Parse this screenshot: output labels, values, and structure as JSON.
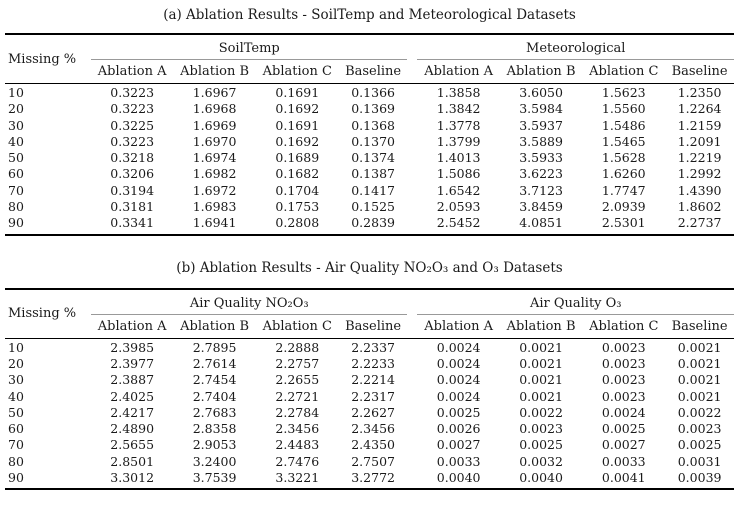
{
  "page": {
    "background": "#ffffff",
    "text_color": "#1a1a1a",
    "heavy_rule_color": "#000000",
    "cmidrule_color": "#999999"
  },
  "tables": [
    {
      "caption": "(a) Ablation Results - SoilTemp and Meteorological Datasets",
      "row_header": "Missing %",
      "groups": [
        {
          "label": "SoilTemp",
          "columns": [
            "Ablation A",
            "Ablation B",
            "Ablation C",
            "Baseline"
          ]
        },
        {
          "label": "Meteorological",
          "columns": [
            "Ablation A",
            "Ablation B",
            "Ablation C",
            "Baseline"
          ]
        }
      ],
      "rows": [
        {
          "missing": "10",
          "values": [
            "0.3223",
            "1.6967",
            "0.1691",
            "0.1366",
            "1.3858",
            "3.6050",
            "1.5623",
            "1.2350"
          ]
        },
        {
          "missing": "20",
          "values": [
            "0.3223",
            "1.6968",
            "0.1692",
            "0.1369",
            "1.3842",
            "3.5984",
            "1.5560",
            "1.2264"
          ]
        },
        {
          "missing": "30",
          "values": [
            "0.3225",
            "1.6969",
            "0.1691",
            "0.1368",
            "1.3778",
            "3.5937",
            "1.5486",
            "1.2159"
          ]
        },
        {
          "missing": "40",
          "values": [
            "0.3223",
            "1.6970",
            "0.1692",
            "0.1370",
            "1.3799",
            "3.5889",
            "1.5465",
            "1.2091"
          ]
        },
        {
          "missing": "50",
          "values": [
            "0.3218",
            "1.6974",
            "0.1689",
            "0.1374",
            "1.4013",
            "3.5933",
            "1.5628",
            "1.2219"
          ]
        },
        {
          "missing": "60",
          "values": [
            "0.3206",
            "1.6982",
            "0.1682",
            "0.1387",
            "1.5086",
            "3.6223",
            "1.6260",
            "1.2992"
          ]
        },
        {
          "missing": "70",
          "values": [
            "0.3194",
            "1.6972",
            "0.1704",
            "0.1417",
            "1.6542",
            "3.7123",
            "1.7747",
            "1.4390"
          ]
        },
        {
          "missing": "80",
          "values": [
            "0.3181",
            "1.6983",
            "0.1753",
            "0.1525",
            "2.0593",
            "3.8459",
            "2.0939",
            "1.8602"
          ]
        },
        {
          "missing": "90",
          "values": [
            "0.3341",
            "1.6941",
            "0.2808",
            "0.2839",
            "2.5452",
            "4.0851",
            "2.5301",
            "2.2737"
          ]
        }
      ]
    },
    {
      "caption": "(b) Ablation Results - Air Quality NO₂O₃ and O₃ Datasets",
      "row_header": "Missing %",
      "groups": [
        {
          "label": "Air Quality NO₂O₃",
          "columns": [
            "Ablation A",
            "Ablation B",
            "Ablation C",
            "Baseline"
          ]
        },
        {
          "label": "Air Quality O₃",
          "columns": [
            "Ablation A",
            "Ablation B",
            "Ablation C",
            "Baseline"
          ]
        }
      ],
      "rows": [
        {
          "missing": "10",
          "values": [
            "2.3985",
            "2.7895",
            "2.2888",
            "2.2337",
            "0.0024",
            "0.0021",
            "0.0023",
            "0.0021"
          ]
        },
        {
          "missing": "20",
          "values": [
            "2.3977",
            "2.7614",
            "2.2757",
            "2.2233",
            "0.0024",
            "0.0021",
            "0.0023",
            "0.0021"
          ]
        },
        {
          "missing": "30",
          "values": [
            "2.3887",
            "2.7454",
            "2.2655",
            "2.2214",
            "0.0024",
            "0.0021",
            "0.0023",
            "0.0021"
          ]
        },
        {
          "missing": "40",
          "values": [
            "2.4025",
            "2.7404",
            "2.2721",
            "2.2317",
            "0.0024",
            "0.0021",
            "0.0023",
            "0.0021"
          ]
        },
        {
          "missing": "50",
          "values": [
            "2.4217",
            "2.7683",
            "2.2784",
            "2.2627",
            "0.0025",
            "0.0022",
            "0.0024",
            "0.0022"
          ]
        },
        {
          "missing": "60",
          "values": [
            "2.4890",
            "2.8358",
            "2.3456",
            "2.3456",
            "0.0026",
            "0.0023",
            "0.0025",
            "0.0023"
          ]
        },
        {
          "missing": "70",
          "values": [
            "2.5655",
            "2.9053",
            "2.4483",
            "2.4350",
            "0.0027",
            "0.0025",
            "0.0027",
            "0.0025"
          ]
        },
        {
          "missing": "80",
          "values": [
            "2.8501",
            "3.2400",
            "2.7476",
            "2.7507",
            "0.0033",
            "0.0032",
            "0.0033",
            "0.0031"
          ]
        },
        {
          "missing": "90",
          "values": [
            "3.3012",
            "3.7539",
            "3.3221",
            "3.2772",
            "0.0040",
            "0.0040",
            "0.0041",
            "0.0039"
          ]
        }
      ]
    }
  ]
}
